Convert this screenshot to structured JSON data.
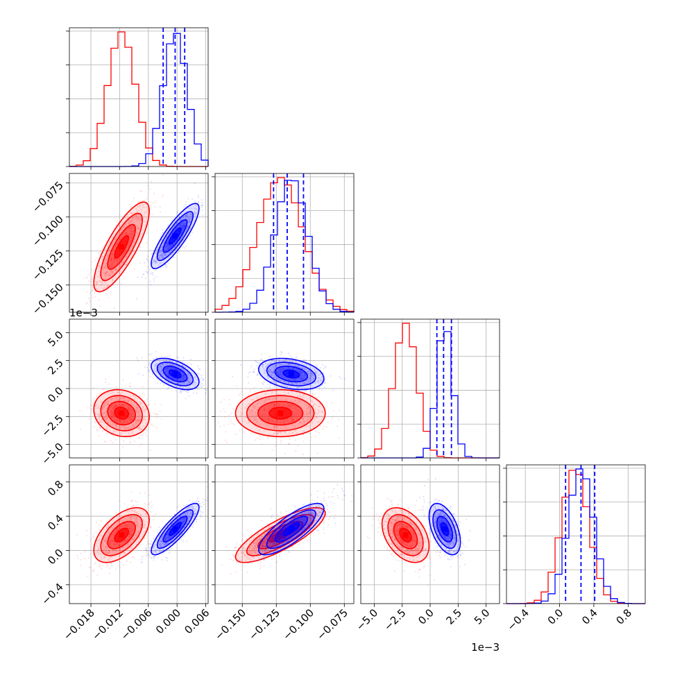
{
  "colors": {
    "red": "#ff0000",
    "blue": "#0000ff",
    "grid": "#b0b0b0"
  },
  "chart_data": {
    "type": "corner",
    "title": "",
    "legend": "none",
    "grid": true,
    "parameters": [
      {
        "range": [
          -0.0225,
          0.0065
        ],
        "ticks": [
          -0.018,
          -0.012,
          -0.006,
          0.0,
          0.006
        ],
        "tick_labels": [
          "−0.018",
          "−0.012",
          "−0.006",
          "0.000",
          "0.006"
        ],
        "offset_text": ""
      },
      {
        "range": [
          -0.17,
          -0.068
        ],
        "ticks": [
          -0.15,
          -0.125,
          -0.1,
          -0.075
        ],
        "tick_labels": [
          "−0.150",
          "−0.125",
          "−0.100",
          "−0.075"
        ],
        "offset_text": ""
      },
      {
        "range": [
          -6.2,
          6.2
        ],
        "ticks": [
          -5.0,
          -2.5,
          0.0,
          2.5,
          5.0
        ],
        "tick_labels": [
          "−5.0",
          "−2.5",
          "0.0",
          "2.5",
          "5.0"
        ],
        "offset_text": "1e−3"
      },
      {
        "range": [
          -0.62,
          1.0
        ],
        "ticks": [
          -0.4,
          0.0,
          0.4,
          0.8
        ],
        "tick_labels": [
          "−0.4",
          "0.0",
          "0.4",
          "0.8"
        ],
        "offset_text": ""
      }
    ],
    "series": [
      {
        "color": "#ff0000",
        "means": [
          -0.0116,
          -0.122,
          -2.2,
          0.18
        ],
        "sigmas": [
          0.0029,
          0.0165,
          1.05,
          0.16
        ],
        "corr": [
          [
            1,
            0.8,
            -0.15,
            0.55
          ],
          [
            0.8,
            1,
            0.0,
            0.8
          ],
          [
            -0.15,
            0.0,
            1,
            -0.4
          ],
          [
            0.55,
            0.8,
            -0.4,
            1
          ]
        ],
        "quantiles": []
      },
      {
        "color": "#0000ff",
        "means": [
          -0.0004,
          -0.114,
          1.3,
          0.25
        ],
        "sigmas": [
          0.0025,
          0.012,
          0.7,
          0.15
        ],
        "corr": [
          [
            1,
            0.85,
            -0.5,
            0.85
          ],
          [
            0.85,
            1,
            -0.3,
            0.8
          ],
          [
            -0.5,
            -0.3,
            1,
            -0.5
          ],
          [
            0.85,
            0.8,
            -0.5,
            1
          ]
        ],
        "quantiles": [
          [
            -0.0029,
            -0.0004,
            0.0016
          ],
          [
            -0.127,
            -0.117,
            -0.105
          ],
          [
            0.6,
            1.2,
            1.9
          ],
          [
            0.07,
            0.25,
            0.41
          ]
        ]
      }
    ]
  }
}
